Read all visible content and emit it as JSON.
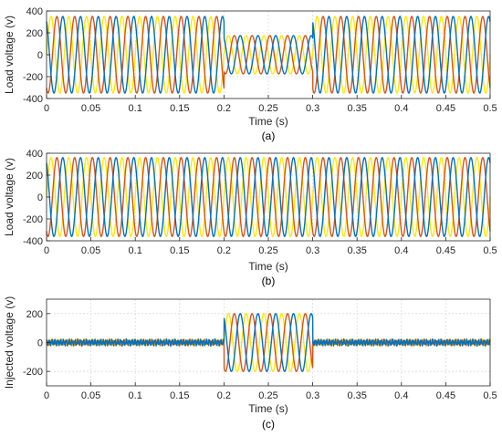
{
  "colors": {
    "phase_a": "#EDB120",
    "phase_b": "#D95319",
    "phase_c": "#0072BD",
    "phase_a_bright": "#FFE800"
  },
  "chart_data": [
    {
      "type": "line",
      "panel": "(a)",
      "xlabel": "Time (s)",
      "ylabel": "Load voltage (v)",
      "xlim": [
        0,
        0.5
      ],
      "ylim": [
        -400,
        400
      ],
      "xticks": [
        "0",
        "0.05",
        "0.1",
        "0.15",
        "0.2",
        "0.25",
        "0.3",
        "0.35",
        "0.4",
        "0.45",
        "0.5"
      ],
      "yticks": [
        "400",
        "200",
        "0",
        "-200",
        "-400"
      ],
      "grid": true,
      "frequency_hz": 50,
      "phases_deg": [
        0,
        -120,
        120
      ],
      "segments": [
        {
          "t_start": 0,
          "t_end": 0.2,
          "amplitude": 350
        },
        {
          "t_start": 0.2,
          "t_end": 0.3,
          "amplitude": 175
        },
        {
          "t_start": 0.3,
          "t_end": 0.5,
          "amplitude": 350
        }
      ]
    },
    {
      "type": "line",
      "panel": "(b)",
      "xlabel": "Time (s)",
      "ylabel": "Load voltage (v)",
      "xlim": [
        0,
        0.5
      ],
      "ylim": [
        -400,
        400
      ],
      "xticks": [
        "0",
        "0.05",
        "0.1",
        "0.15",
        "0.2",
        "0.25",
        "0.3",
        "0.35",
        "0.4",
        "0.45",
        "0.5"
      ],
      "yticks": [
        "400",
        "200",
        "0",
        "-200",
        "-400"
      ],
      "grid": true,
      "frequency_hz": 50,
      "phases_deg": [
        0,
        -120,
        120
      ],
      "segments": [
        {
          "t_start": 0,
          "t_end": 0.5,
          "amplitude": 360
        }
      ]
    },
    {
      "type": "line",
      "panel": "(c)",
      "xlabel": "Time (s)",
      "ylabel": "Injected voltage (v)",
      "xlim": [
        0,
        0.5
      ],
      "ylim": [
        -300,
        300
      ],
      "xticks": [
        "0",
        "0.05",
        "0.1",
        "0.15",
        "0.2",
        "0.25",
        "0.3",
        "0.35",
        "0.4",
        "0.45",
        "0.5"
      ],
      "yticks": [
        "200",
        "0",
        "-200"
      ],
      "grid": true,
      "frequency_hz": 50,
      "phases_deg": [
        0,
        -120,
        120
      ],
      "segments": [
        {
          "t_start": 0,
          "t_end": 0.2,
          "amplitude": 0,
          "ripple": 25
        },
        {
          "t_start": 0.2,
          "t_end": 0.3,
          "amplitude": 200
        },
        {
          "t_start": 0.3,
          "t_end": 0.5,
          "amplitude": 0,
          "ripple": 25
        }
      ]
    }
  ]
}
